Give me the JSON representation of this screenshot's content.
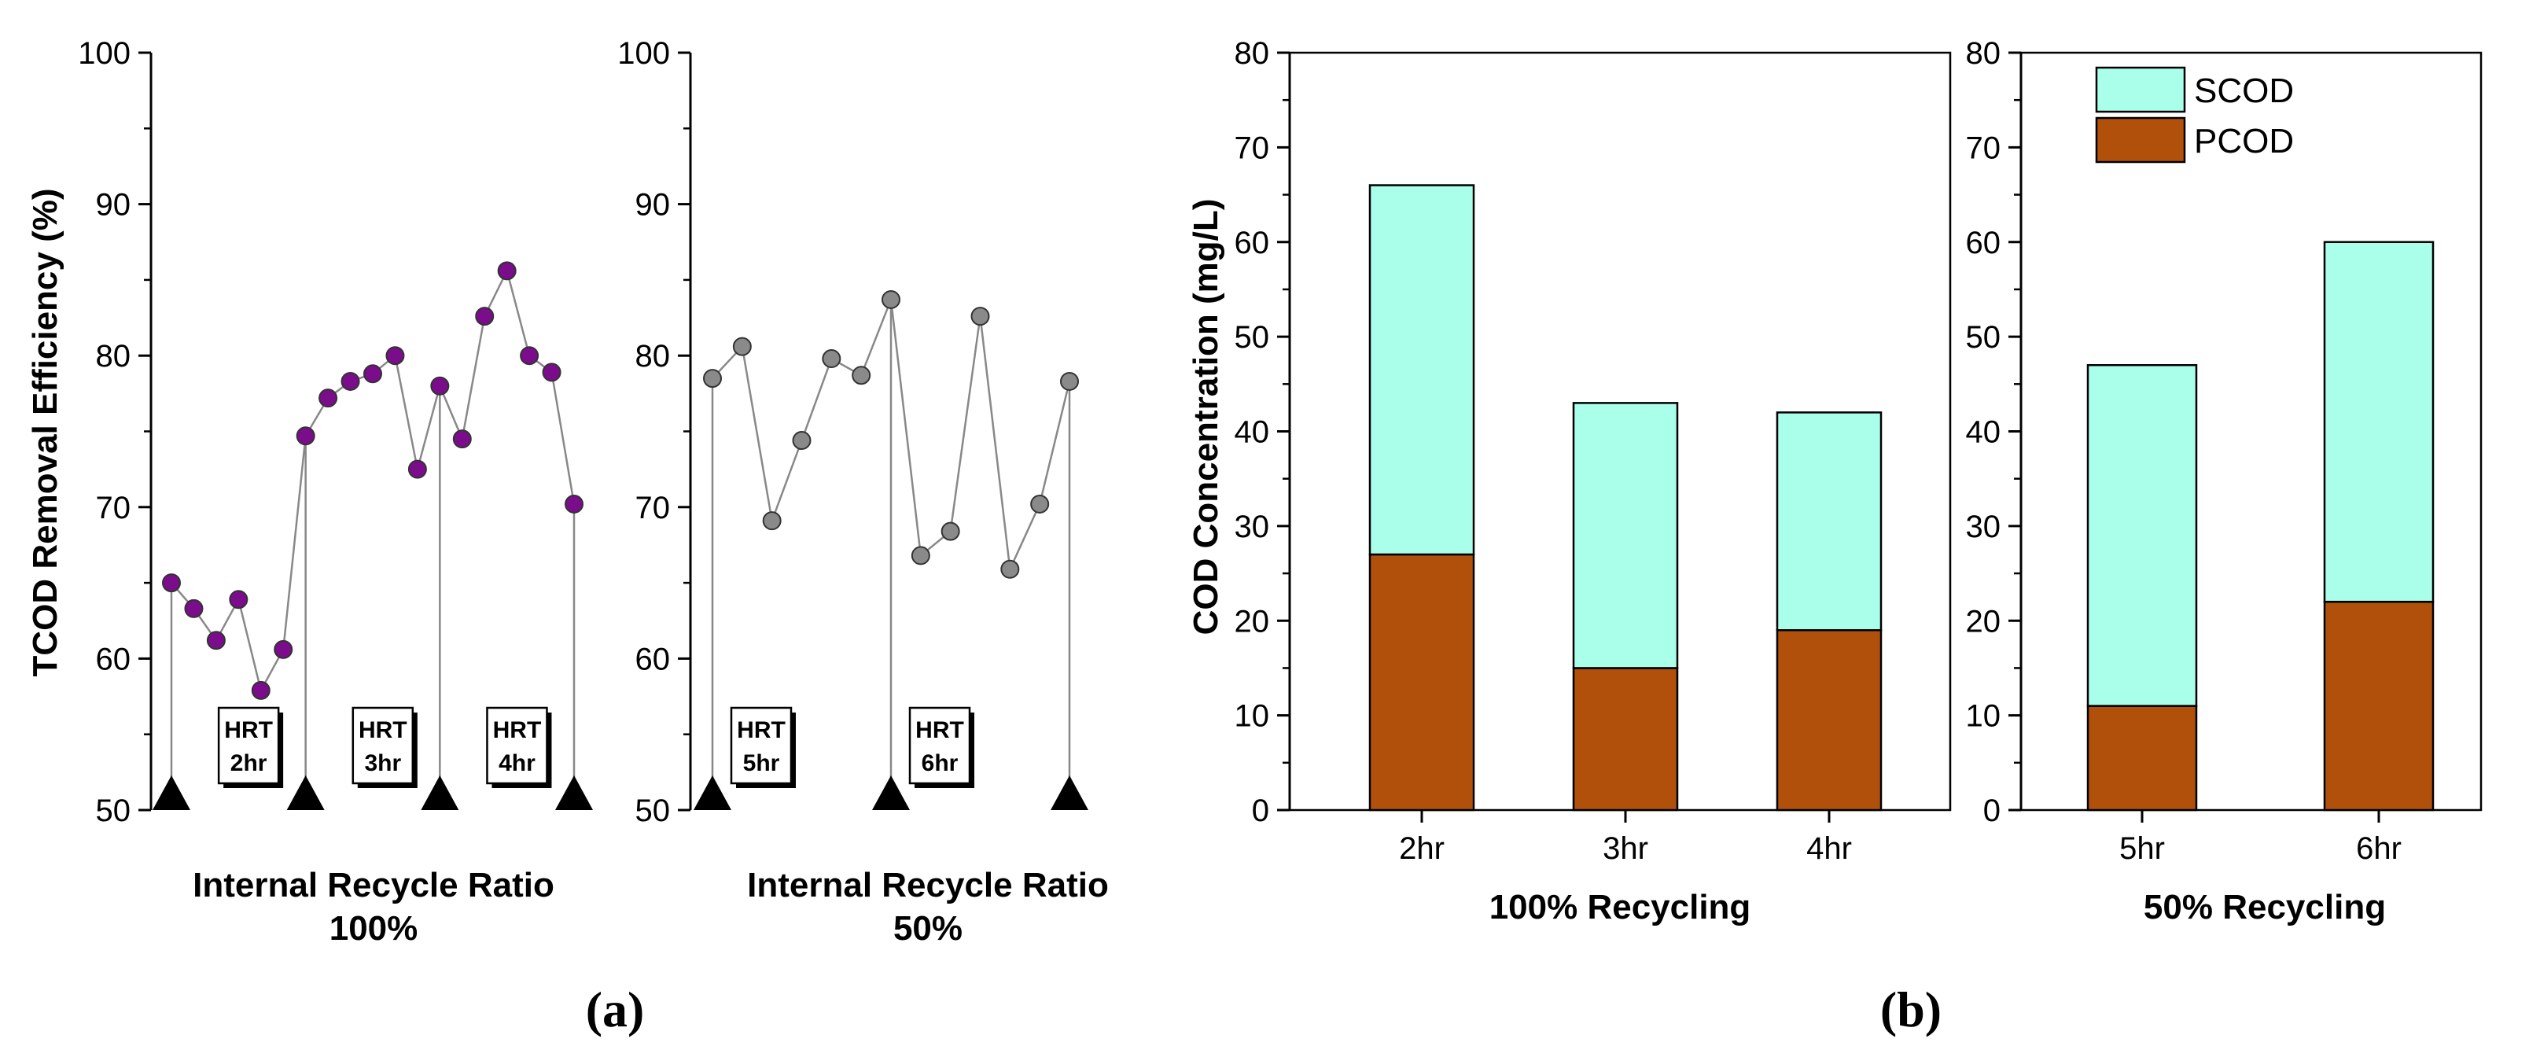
{
  "colors": {
    "purple": "#7B0C8C",
    "gray": "#8A8A8A",
    "scod": "#AAFFEA",
    "pcod": "#B1500A",
    "line": "#888888"
  },
  "panel_labels": {
    "a": "(a)",
    "b": "(b)"
  },
  "chart_data": [
    {
      "type": "line",
      "name": "a-left",
      "ylabel": "TCOD Removal Efficiency (%)",
      "ylim": [
        50,
        100
      ],
      "yticks": [
        50,
        60,
        70,
        80,
        90,
        100
      ],
      "xlabel_line1": "Internal Recycle Ratio",
      "xlabel_line2": "100%",
      "values": [
        65.0,
        63.3,
        61.2,
        63.9,
        57.9,
        60.6,
        74.7,
        77.2,
        78.3,
        78.8,
        80.0,
        72.5,
        78.0,
        74.5,
        82.6,
        85.6,
        80.0,
        78.9,
        70.2
      ],
      "dividers": [
        0,
        6,
        12,
        18
      ],
      "hrt_boxes": [
        {
          "line1": "HRT",
          "line2": "2hr",
          "at": 3
        },
        {
          "line1": "HRT",
          "line2": "3hr",
          "at": 9
        },
        {
          "line1": "HRT",
          "line2": "4hr",
          "at": 15
        }
      ]
    },
    {
      "type": "line",
      "name": "a-right",
      "ylim": [
        50,
        100
      ],
      "yticks": [
        50,
        60,
        70,
        80,
        90,
        100
      ],
      "xlabel_line1": "Internal Recycle Ratio",
      "xlabel_line2": "50%",
      "values": [
        78.5,
        80.6,
        69.1,
        74.4,
        79.8,
        78.7,
        83.7,
        66.8,
        68.4,
        82.6,
        65.9,
        70.2,
        78.3
      ],
      "dividers": [
        0,
        6,
        12
      ],
      "hrt_boxes": [
        {
          "line1": "HRT",
          "line2": "5hr",
          "at": 0
        },
        {
          "line1": "HRT",
          "line2": "6hr",
          "at": 6
        }
      ]
    },
    {
      "type": "bar",
      "name": "b-left",
      "stacked": true,
      "ylabel": "COD Concentration (mg/L)",
      "ylim": [
        0,
        80
      ],
      "yticks": [
        0,
        10,
        20,
        30,
        40,
        50,
        60,
        70,
        80
      ],
      "categories": [
        "2hr",
        "3hr",
        "4hr"
      ],
      "series": [
        {
          "name": "PCOD",
          "values": [
            27,
            15,
            19
          ]
        },
        {
          "name": "SCOD",
          "values": [
            39,
            28,
            23
          ]
        }
      ],
      "xlabel": "100% Recycling"
    },
    {
      "type": "bar",
      "name": "b-right",
      "stacked": true,
      "ylim": [
        0,
        80
      ],
      "yticks": [
        0,
        10,
        20,
        30,
        40,
        50,
        60,
        70,
        80
      ],
      "categories": [
        "5hr",
        "6hr"
      ],
      "series": [
        {
          "name": "PCOD",
          "values": [
            11,
            22
          ]
        },
        {
          "name": "SCOD",
          "values": [
            36,
            38
          ]
        }
      ],
      "xlabel": "50% Recycling",
      "legend": [
        "SCOD",
        "PCOD"
      ]
    }
  ]
}
